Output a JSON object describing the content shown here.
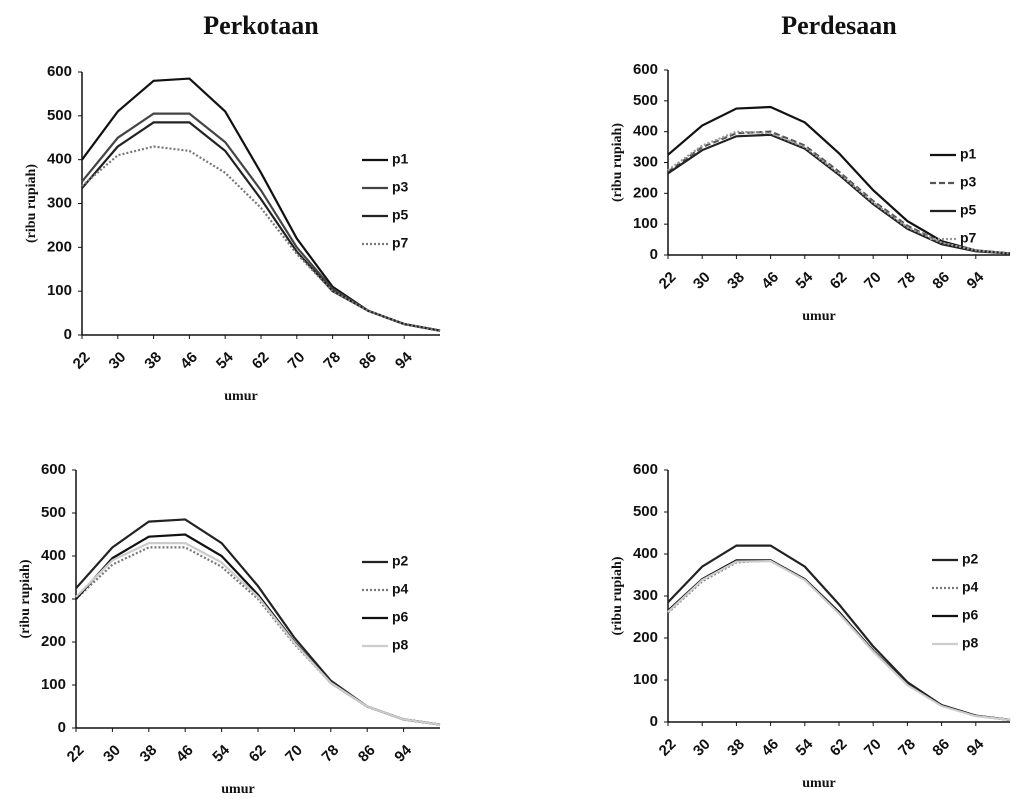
{
  "chart_data": [
    {
      "type": "line",
      "title": "Perkotaan",
      "ylabel": "(ribu rupiah)",
      "xlabel": "umur",
      "x": [
        22,
        30,
        38,
        46,
        54,
        62,
        70,
        78,
        86,
        94,
        102
      ],
      "xlim": [
        22,
        102
      ],
      "xticks": [
        22,
        30,
        38,
        46,
        54,
        62,
        70,
        78,
        86,
        94
      ],
      "ylim": [
        0,
        600
      ],
      "yticks": [
        0,
        100,
        200,
        300,
        400,
        500,
        600
      ],
      "series": [
        {
          "name": "p1",
          "color": "#111111",
          "style": "solid",
          "values": [
            400,
            510,
            580,
            585,
            510,
            370,
            220,
            110,
            55,
            25,
            10
          ]
        },
        {
          "name": "p3",
          "color": "#444444",
          "style": "solid",
          "values": [
            350,
            450,
            505,
            505,
            440,
            330,
            200,
            105,
            55,
            25,
            10
          ]
        },
        {
          "name": "p5",
          "color": "#222222",
          "style": "solid",
          "values": [
            335,
            430,
            485,
            485,
            420,
            310,
            190,
            100,
            55,
            25,
            10
          ]
        },
        {
          "name": "p7",
          "color": "#777777",
          "style": "dotted",
          "values": [
            340,
            410,
            430,
            420,
            370,
            290,
            185,
            100,
            55,
            25,
            10
          ]
        }
      ]
    },
    {
      "type": "line",
      "title": "Perdesaan",
      "ylabel": "(ribu rupiah)",
      "xlabel": "umur",
      "x": [
        22,
        30,
        38,
        46,
        54,
        62,
        70,
        78,
        86,
        94,
        102
      ],
      "xlim": [
        22,
        102
      ],
      "xticks": [
        22,
        30,
        38,
        46,
        54,
        62,
        70,
        78,
        86,
        94
      ],
      "ylim": [
        0,
        600
      ],
      "yticks": [
        0,
        100,
        200,
        300,
        400,
        500,
        600
      ],
      "series": [
        {
          "name": "p1",
          "color": "#111111",
          "style": "solid",
          "values": [
            325,
            420,
            475,
            480,
            430,
            330,
            210,
            110,
            45,
            15,
            5
          ]
        },
        {
          "name": "p3",
          "color": "#555555",
          "style": "dashed",
          "values": [
            270,
            350,
            395,
            400,
            355,
            270,
            175,
            95,
            40,
            15,
            5
          ]
        },
        {
          "name": "p5",
          "color": "#222222",
          "style": "solid",
          "values": [
            265,
            340,
            385,
            390,
            345,
            260,
            165,
            85,
            35,
            12,
            5
          ]
        },
        {
          "name": "p7",
          "color": "#999999",
          "style": "dotted",
          "values": [
            275,
            355,
            400,
            395,
            350,
            265,
            170,
            90,
            40,
            15,
            5
          ]
        }
      ]
    },
    {
      "type": "line",
      "ylabel": "(ribu rupiah)",
      "xlabel": "umur",
      "x": [
        22,
        30,
        38,
        46,
        54,
        62,
        70,
        78,
        86,
        94,
        102
      ],
      "xlim": [
        22,
        102
      ],
      "xticks": [
        22,
        30,
        38,
        46,
        54,
        62,
        70,
        78,
        86,
        94
      ],
      "ylim": [
        0,
        600
      ],
      "yticks": [
        0,
        100,
        200,
        300,
        400,
        500,
        600
      ],
      "series": [
        {
          "name": "p2",
          "color": "#222222",
          "style": "solid",
          "values": [
            325,
            420,
            480,
            485,
            430,
            330,
            210,
            110,
            50,
            20,
            8
          ]
        },
        {
          "name": "p4",
          "color": "#777777",
          "style": "dotted",
          "values": [
            300,
            380,
            420,
            420,
            375,
            300,
            195,
            105,
            50,
            20,
            8
          ]
        },
        {
          "name": "p6",
          "color": "#111111",
          "style": "solid",
          "values": [
            300,
            395,
            445,
            450,
            400,
            310,
            200,
            105,
            50,
            20,
            8
          ]
        },
        {
          "name": "p8",
          "color": "#cccccc",
          "style": "solid",
          "values": [
            305,
            390,
            430,
            430,
            385,
            305,
            198,
            105,
            50,
            20,
            8
          ]
        }
      ]
    },
    {
      "type": "line",
      "ylabel": "(ribu rupiah)",
      "xlabel": "umur",
      "x": [
        22,
        30,
        38,
        46,
        54,
        62,
        70,
        78,
        86,
        94,
        102
      ],
      "xlim": [
        22,
        102
      ],
      "xticks": [
        22,
        30,
        38,
        46,
        54,
        62,
        70,
        78,
        86,
        94
      ],
      "ylim": [
        0,
        600
      ],
      "yticks": [
        0,
        100,
        200,
        300,
        400,
        500,
        600
      ],
      "series": [
        {
          "name": "p2",
          "color": "#222222",
          "style": "solid",
          "values": [
            285,
            370,
            420,
            420,
            370,
            280,
            180,
            95,
            40,
            15,
            5
          ]
        },
        {
          "name": "p4",
          "color": "#777777",
          "style": "dotted",
          "values": [
            260,
            335,
            380,
            385,
            340,
            260,
            170,
            90,
            40,
            15,
            5
          ]
        },
        {
          "name": "p6",
          "color": "#111111",
          "style": "solid",
          "values": [
            265,
            340,
            385,
            385,
            340,
            262,
            170,
            90,
            40,
            15,
            5
          ]
        },
        {
          "name": "p8",
          "color": "#cccccc",
          "style": "solid",
          "values": [
            262,
            338,
            382,
            383,
            338,
            258,
            168,
            88,
            38,
            14,
            5
          ]
        }
      ]
    }
  ]
}
